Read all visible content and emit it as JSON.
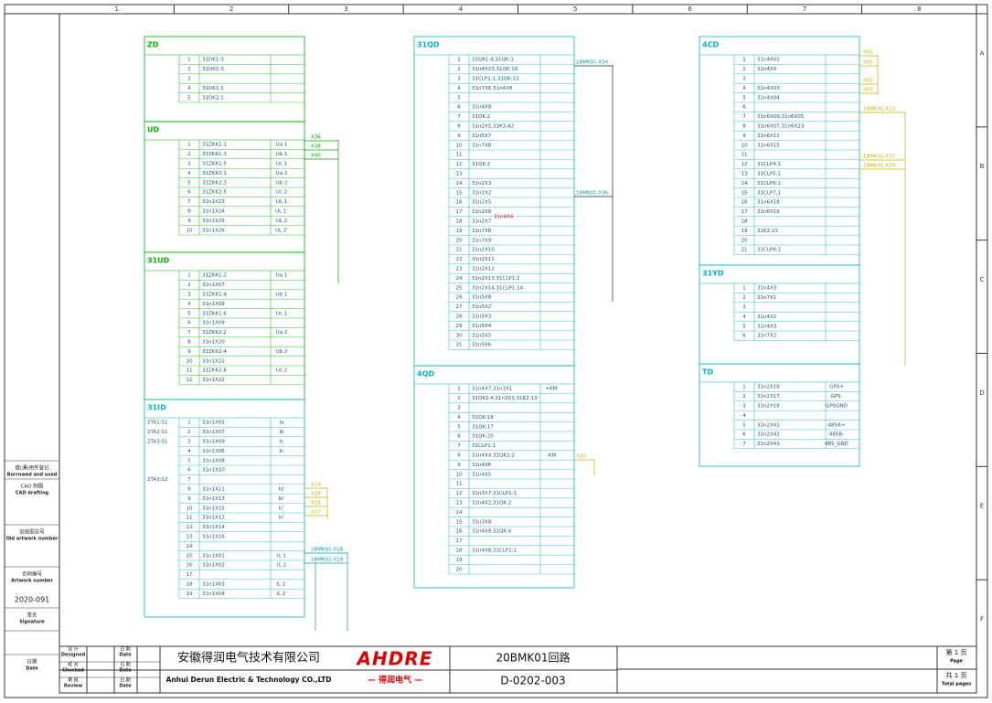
{
  "sheet": {
    "columns": [
      "1",
      "2",
      "3",
      "4",
      "5",
      "6",
      "7",
      "8"
    ],
    "rows": [
      "A",
      "B",
      "C",
      "D",
      "E",
      "F"
    ]
  },
  "side_panel": {
    "labels": [
      {
        "cn": "借(通)用件登记",
        "en": "Borrowed and used"
      },
      {
        "cn": "CAD 制图",
        "en": "CAD drafting"
      },
      {
        "cn": "旧底图总号",
        "en": "Old artwork number"
      },
      {
        "cn": "合同编号",
        "en": "Artwork number"
      },
      {
        "cn": "签名",
        "en": "Signature"
      },
      {
        "cn": "日期",
        "en": "Date"
      }
    ],
    "contract": "2020-091"
  },
  "blocks": [
    {
      "title": "ZD",
      "rows": [
        {
          "n": "1",
          "w": "31DK1:3"
        },
        {
          "n": "2",
          "w": "31DK2:3"
        },
        {
          "n": "3"
        },
        {
          "n": "4",
          "w": "31DK1:1"
        },
        {
          "n": "5",
          "w": "31DK2:1"
        }
      ]
    },
    {
      "title": "UD",
      "rows": [
        {
          "n": "1",
          "w": "31ZKK1:1",
          "s": "Ua 1"
        },
        {
          "n": "2",
          "w": "31ZKK1:3",
          "s": "Ub 1"
        },
        {
          "n": "3",
          "w": "31ZKK1:5",
          "s": "Uc 1"
        },
        {
          "n": "4",
          "w": "31ZKK2:1",
          "s": "Ua 2"
        },
        {
          "n": "5",
          "w": "31ZKK2:3",
          "s": "Ub 2"
        },
        {
          "n": "6",
          "w": "31ZKK2:5",
          "s": "Uc 2"
        },
        {
          "n": "7",
          "w": "31n1X23",
          "s": "UL 1"
        },
        {
          "n": "8",
          "w": "31n1X24",
          "s": "UL 1'"
        },
        {
          "n": "9",
          "w": "31n1X25",
          "s": "UL 2"
        },
        {
          "n": "10",
          "w": "31n1X26",
          "s": "UL 2'"
        }
      ]
    },
    {
      "title": "31UD",
      "rows": [
        {
          "n": "1",
          "w": "31ZKK1:2",
          "s": "Ua 1"
        },
        {
          "n": "2",
          "w": "31n1X07"
        },
        {
          "n": "3",
          "w": "31ZKK1:4",
          "s": "Ub 1"
        },
        {
          "n": "4",
          "w": "31n1X08"
        },
        {
          "n": "5",
          "w": "31ZKK1:6",
          "s": "Uc 1"
        },
        {
          "n": "6",
          "w": "31n1X09"
        },
        {
          "n": "7",
          "w": "31ZKK2:2",
          "s": "Ua 2"
        },
        {
          "n": "8",
          "w": "31n1X20"
        },
        {
          "n": "9",
          "w": "31ZKK2:4",
          "s": "Ub 2"
        },
        {
          "n": "10",
          "w": "31n1X21"
        },
        {
          "n": "11",
          "w": "31ZKK2:6",
          "s": "Uc 2"
        },
        {
          "n": "12",
          "w": "31n1X22"
        }
      ]
    },
    {
      "title": "31ID",
      "rows": [
        {
          "l": "2TA1:S1",
          "n": "1",
          "w": "31n1X05",
          "s": "Ia"
        },
        {
          "l": "2TA2:S1",
          "n": "2",
          "w": "31n1X07",
          "s": "Ib"
        },
        {
          "l": "2TA3:S1",
          "n": "3",
          "w": "31n1X09",
          "s": "Ic"
        },
        {
          "n": "4",
          "w": "31n1X06",
          "s": "In"
        },
        {
          "n": "5",
          "w": "31n1X08"
        },
        {
          "n": "6",
          "w": "31n1X10"
        },
        {
          "l": "2TA3:S2",
          "n": "7"
        },
        {
          "n": "8",
          "w": "31n1X11",
          "s": "Ia'"
        },
        {
          "n": "9",
          "w": "31n1X13",
          "s": "Ib'"
        },
        {
          "n": "10",
          "w": "31n1X15",
          "s": "Ic'"
        },
        {
          "n": "11",
          "w": "31n1X12",
          "s": "In'"
        },
        {
          "n": "12",
          "w": "31n1X14"
        },
        {
          "n": "13",
          "w": "31n1X16"
        },
        {
          "n": "14"
        },
        {
          "n": "15",
          "w": "31n1X01",
          "s": "IL 1"
        },
        {
          "n": "16",
          "w": "31n1X02",
          "s": "IL 2"
        },
        {
          "n": "17"
        },
        {
          "n": "18",
          "w": "31n1X03",
          "s": "IL 1'"
        },
        {
          "n": "19",
          "w": "31n1X04",
          "s": "IL 2'"
        }
      ]
    },
    {
      "title": "31QD",
      "rows": [
        {
          "n": "1",
          "w": "31QK1:4,31QK:1"
        },
        {
          "n": "2",
          "w": "31n4X23,31QK:16"
        },
        {
          "n": "3",
          "w": "31CLP1:1,31QK:13"
        },
        {
          "n": "4",
          "w": "31n7X6 31n4X8"
        },
        {
          "n": "5"
        },
        {
          "n": "6",
          "w": "31n4X8"
        },
        {
          "n": "7",
          "w": "31QK:2"
        },
        {
          "n": "8",
          "w": "31n2X5,31K3:A2"
        },
        {
          "n": "9",
          "w": "31n5X7"
        },
        {
          "n": "10",
          "w": "31n7X8"
        },
        {
          "n": "11"
        },
        {
          "n": "12",
          "w": "31QK:2"
        },
        {
          "n": "13"
        },
        {
          "n": "14",
          "w": "31n2X3"
        },
        {
          "n": "15",
          "w": "31n2X2"
        },
        {
          "n": "16",
          "w": "31n2X5"
        },
        {
          "n": "17",
          "w": "31n2X8"
        },
        {
          "n": "18",
          "w": "31n2X7"
        },
        {
          "n": "19",
          "w": "31n7X8"
        },
        {
          "n": "20",
          "w": "31n7X9"
        },
        {
          "n": "21",
          "w": "31n2X10"
        },
        {
          "n": "22",
          "w": "31n2X11"
        },
        {
          "n": "23",
          "w": "31n2X12"
        },
        {
          "n": "24",
          "w": "31n2X13,31CLP1:2"
        },
        {
          "n": "25",
          "w": "31n2X14,31CLP1:14"
        },
        {
          "n": "26",
          "w": "31n5X8"
        },
        {
          "n": "27",
          "w": "31n5X2"
        },
        {
          "n": "28",
          "w": "31n5X3"
        },
        {
          "n": "29",
          "w": "31n5X4"
        },
        {
          "n": "30",
          "w": "31n5X5"
        },
        {
          "n": "31",
          "w": "31n5X6"
        }
      ]
    },
    {
      "title": "4QD",
      "rows": [
        {
          "n": "1",
          "w": "31n4X7,31n3X1",
          "s": "+KM"
        },
        {
          "n": "2",
          "w": "31QK2:4,31n3X3,31K2:13"
        },
        {
          "n": "3"
        },
        {
          "n": "4",
          "w": "31QK:18"
        },
        {
          "n": "5",
          "w": "31QK:17"
        },
        {
          "n": "6",
          "w": "31QK:20"
        },
        {
          "n": "7",
          "w": "31CLP1:1"
        },
        {
          "n": "8",
          "w": "31n4X4 31QK2:2",
          "s": "-KM"
        },
        {
          "n": "9",
          "w": "31n4X6"
        },
        {
          "n": "10",
          "w": "31n4X5"
        },
        {
          "n": "11"
        },
        {
          "n": "12",
          "w": "31n3X7,31CLP1:1"
        },
        {
          "n": "13",
          "w": "31n4X2,31QK:2"
        },
        {
          "n": "14"
        },
        {
          "n": "15",
          "w": "31n3X8"
        },
        {
          "n": "16",
          "w": "31n4X9,31QK:4"
        },
        {
          "n": "17"
        },
        {
          "n": "18",
          "w": "31n4X8,31CLP1:1"
        },
        {
          "n": "19"
        },
        {
          "n": "20"
        }
      ]
    },
    {
      "title": "4CD",
      "rows": [
        {
          "n": "1",
          "w": "31n4X01"
        },
        {
          "n": "2",
          "w": "31n4X9"
        },
        {
          "n": "3"
        },
        {
          "n": "4",
          "w": "31n4X03"
        },
        {
          "n": "5",
          "w": "31n4X04"
        },
        {
          "n": "6"
        },
        {
          "n": "7",
          "w": "31n6X09,31n6X05"
        },
        {
          "n": "8",
          "w": "31n6X07,31n6X23"
        },
        {
          "n": "9",
          "w": "31n6X11"
        },
        {
          "n": "10",
          "w": "31n6X15"
        },
        {
          "n": "11"
        },
        {
          "n": "12",
          "w": "31CLP4:1"
        },
        {
          "n": "13",
          "w": "31CLP5:1"
        },
        {
          "n": "14",
          "w": "31CLP6:1"
        },
        {
          "n": "15",
          "w": "31CLP7:1"
        },
        {
          "n": "16",
          "w": "31n6X18"
        },
        {
          "n": "17",
          "w": "31n6X19"
        },
        {
          "n": "18"
        },
        {
          "n": "19",
          "w": "31K2:23"
        },
        {
          "n": "20"
        },
        {
          "n": "21",
          "w": "31CLP8:1"
        }
      ]
    },
    {
      "title": "31YD",
      "rows": [
        {
          "n": "1",
          "w": "31n4X3"
        },
        {
          "n": "2",
          "w": "31n7X1"
        },
        {
          "n": "3"
        },
        {
          "n": "4",
          "w": "31n4X2"
        },
        {
          "n": "5",
          "w": "31n4X3"
        },
        {
          "n": "6",
          "w": "31n7X2"
        }
      ]
    },
    {
      "title": "TD",
      "rows": [
        {
          "n": "1",
          "w": "31n2X16",
          "s": "GPS+"
        },
        {
          "n": "2",
          "w": "31n2X17",
          "s": "GPS-"
        },
        {
          "n": "3",
          "w": "31n2X18",
          "s": "GPSGND"
        },
        {
          "n": "4"
        },
        {
          "n": "5",
          "w": "31n2X41",
          "s": "485A+"
        },
        {
          "n": "6",
          "w": "31n2X42",
          "s": "485B-"
        },
        {
          "n": "7",
          "w": "31n2X43",
          "s": "485_GND"
        }
      ]
    }
  ],
  "links": [
    {
      "text": "X36"
    },
    {
      "text": "X38"
    },
    {
      "text": "X40"
    },
    {
      "text": "X24"
    },
    {
      "text": "X26"
    },
    {
      "text": "X28"
    },
    {
      "text": "X27"
    },
    {
      "text": "1BMK01-X18"
    },
    {
      "text": "1BMK01-X19"
    },
    {
      "text": "1BMK01-X34"
    },
    {
      "text": "1BMK01-X36"
    },
    {
      "text": "X20"
    },
    {
      "text": "X01"
    },
    {
      "text": "X02"
    },
    {
      "text": "X03"
    },
    {
      "text": "X05"
    },
    {
      "text": "1BMK01-X23"
    },
    {
      "text": "1BMK01-X27"
    },
    {
      "text": "1BMK01-X29"
    },
    {
      "text": "31n4X4"
    }
  ],
  "title_block": {
    "designed": {
      "cn": "设 计",
      "en": "Designed"
    },
    "checked": {
      "cn": "校 对",
      "en": "Checked"
    },
    "review": {
      "cn": "审 核",
      "en": "Review"
    },
    "date_labels": [
      {
        "cn": "日 期",
        "en": "Date"
      },
      {
        "cn": "日 期",
        "en": "Date"
      },
      {
        "cn": "日 期",
        "en": "Date"
      }
    ],
    "company_cn": "安徽得润电气技术有限公司",
    "company_en": "Anhui Derun Electric & Technology CO.,LTD",
    "logo": "AHDRE",
    "logo_sub": "— 得润电气 —",
    "circuit": "20BMK01回路",
    "drawing_no": "D-0202-003",
    "page": {
      "cn": "第 1 页",
      "en": "Page"
    },
    "total": {
      "cn": "共 1 页",
      "en": "Total pages"
    }
  }
}
